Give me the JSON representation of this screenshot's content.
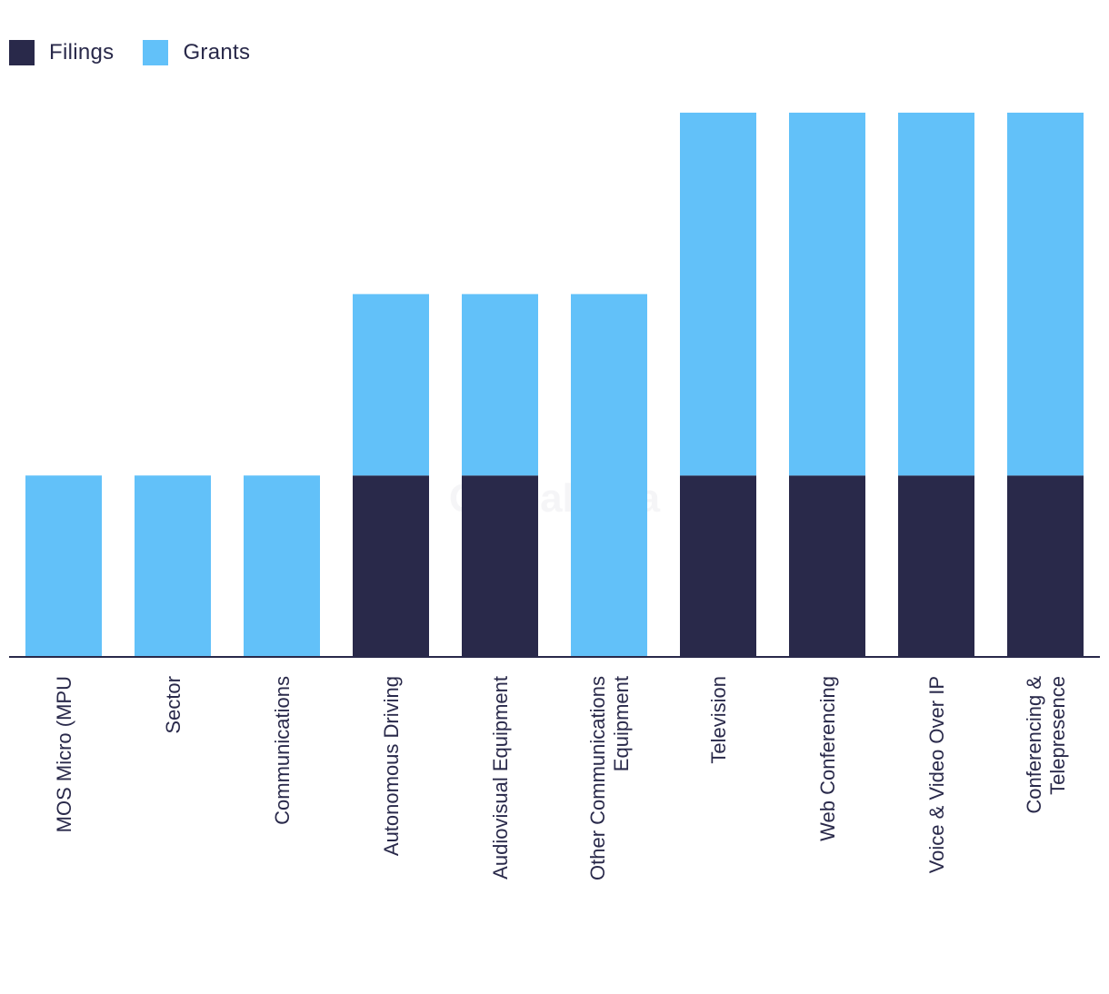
{
  "chart_data": {
    "type": "bar",
    "stacked": true,
    "title": "",
    "xlabel": "",
    "ylabel": "",
    "ylim": [
      0,
      3
    ],
    "grid": false,
    "legend_position": "top-left",
    "categories": [
      "MOS Micro (MPU",
      "Sector",
      "Communications",
      "Autonomous Driving",
      "Audiovisual Equipment",
      "Other Communications Equipment",
      "Television",
      "Web Conferencing",
      "Voice & Video Over IP",
      "Conferencing & Telepresence"
    ],
    "category_lines": [
      [
        "MOS Micro (MPU"
      ],
      [
        "Sector"
      ],
      [
        "Communications"
      ],
      [
        "Autonomous Driving"
      ],
      [
        "Audiovisual Equipment"
      ],
      [
        "Other Communications",
        "Equipment"
      ],
      [
        "Television"
      ],
      [
        "Web Conferencing"
      ],
      [
        "Voice & Video Over IP"
      ],
      [
        "Conferencing &",
        "Telepresence"
      ]
    ],
    "series": [
      {
        "name": "Filings",
        "color": "#29294a",
        "values": [
          0,
          0,
          0,
          1,
          1,
          0,
          1,
          1,
          1,
          1
        ]
      },
      {
        "name": "Grants",
        "color": "#62c1f9",
        "values": [
          1,
          1,
          1,
          1,
          1,
          2,
          2,
          2,
          2,
          2
        ]
      }
    ]
  },
  "watermark": "GlobalData"
}
